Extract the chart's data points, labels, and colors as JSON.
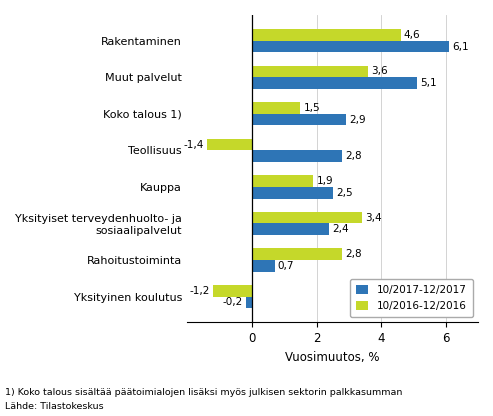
{
  "categories": [
    "Rakentaminen",
    "Muut palvelut",
    "Koko talous 1)",
    "Teollisuus",
    "Kauppa",
    "Yksityiset terveydenhuolto- ja\nsosiaalipalvelut",
    "Rahoitustoiminta",
    "Yksityinen koulutus"
  ],
  "series1_label": "10/2017-12/2017",
  "series2_label": "10/2016-12/2016",
  "series1_values": [
    6.1,
    5.1,
    2.9,
    2.8,
    2.5,
    2.4,
    0.7,
    -0.2
  ],
  "series2_values": [
    4.6,
    3.6,
    1.5,
    -1.4,
    1.9,
    3.4,
    2.8,
    -1.2
  ],
  "color1": "#2E75B6",
  "color2": "#C5D82A",
  "xlabel": "Vuosimuutos, %",
  "xlim": [
    -2.0,
    7.0
  ],
  "xticks": [
    0,
    2,
    4,
    6
  ],
  "footnote1": "1) Koko talous sisältää päätoimialojen lisäksi myös julkisen sektorin palkkasumman",
  "footnote2": "Lähde: Tilastokeskus",
  "bar_height": 0.32
}
